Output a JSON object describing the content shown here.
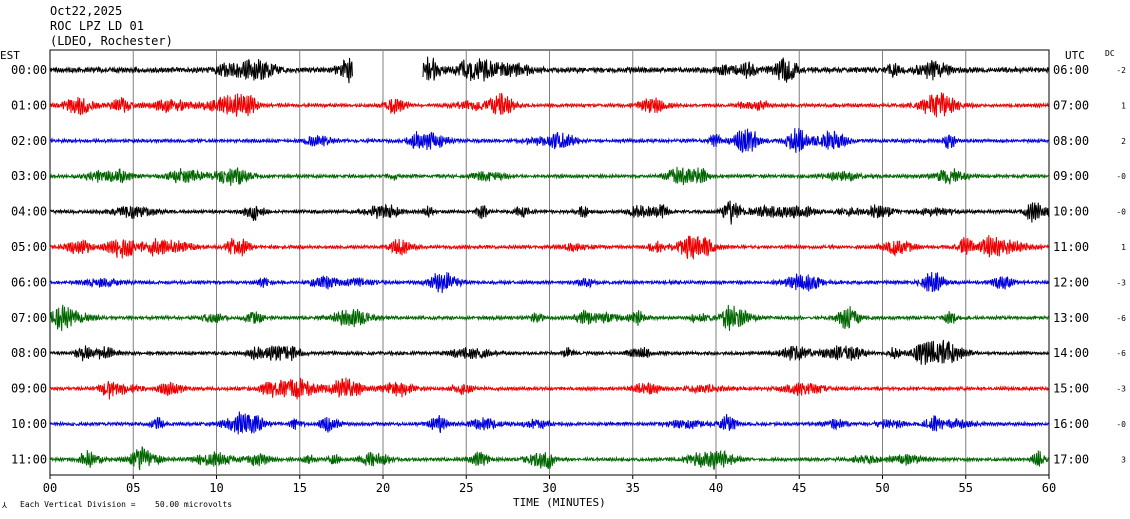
{
  "header": {
    "date": "Oct22,2025",
    "station": "ROC LPZ LD 01",
    "location": "(LDEO, Rochester)"
  },
  "left_axis_label": "EST",
  "right_axis_label": "UTC",
  "dc_label": "DC",
  "footer": {
    "scale_prefix": "Each Vertical Division =",
    "scale_value": "50.00 microvolts"
  },
  "chart_data": {
    "type": "line",
    "title": "ROC LPZ LD 01",
    "xlabel": "TIME (MINUTES)",
    "ylabel": "",
    "x_ticks": [
      "00",
      "05",
      "10",
      "15",
      "20",
      "25",
      "30",
      "35",
      "40",
      "45",
      "50",
      "55",
      "60"
    ],
    "xlim": [
      0,
      60
    ],
    "grid": true,
    "trace_colors": [
      "#000000",
      "#ee0000",
      "#0000dd",
      "#006600"
    ],
    "rows": [
      {
        "est": "00:00",
        "utc": "06:00",
        "dc": "-2",
        "color": "#000000",
        "gaps": [
          [
            18.2,
            22.4
          ]
        ]
      },
      {
        "est": "01:00",
        "utc": "07:00",
        "dc": "1",
        "color": "#ee0000",
        "gaps": []
      },
      {
        "est": "02:00",
        "utc": "08:00",
        "dc": "2",
        "color": "#0000dd",
        "gaps": []
      },
      {
        "est": "03:00",
        "utc": "09:00",
        "dc": "-0",
        "color": "#006600",
        "gaps": []
      },
      {
        "est": "04:00",
        "utc": "10:00",
        "dc": "-0",
        "color": "#000000",
        "gaps": []
      },
      {
        "est": "05:00",
        "utc": "11:00",
        "dc": "1",
        "color": "#ee0000",
        "gaps": []
      },
      {
        "est": "06:00",
        "utc": "12:00",
        "dc": "-3",
        "color": "#0000dd",
        "gaps": []
      },
      {
        "est": "07:00",
        "utc": "13:00",
        "dc": "-6",
        "color": "#006600",
        "gaps": []
      },
      {
        "est": "08:00",
        "utc": "14:00",
        "dc": "-6",
        "color": "#000000",
        "gaps": []
      },
      {
        "est": "09:00",
        "utc": "15:00",
        "dc": "-3",
        "color": "#ee0000",
        "gaps": []
      },
      {
        "est": "10:00",
        "utc": "16:00",
        "dc": "-0",
        "color": "#0000dd",
        "gaps": []
      },
      {
        "est": "11:00",
        "utc": "17:00",
        "dc": "3",
        "color": "#006600",
        "gaps": []
      }
    ]
  }
}
